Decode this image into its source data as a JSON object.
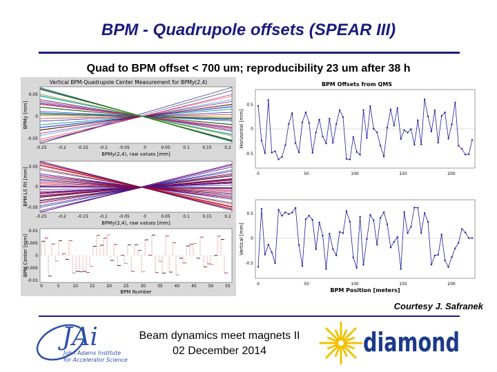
{
  "slide": {
    "title": "BPM - Quadrupole offsets (SPEAR III)",
    "subtitle": "Quad to BPM offset < 700 um; reproducibility 23 um after 38 h",
    "courtesy": "Courtesy J. Safranek",
    "footer_line1": "Beam dynamics meet magnets II",
    "footer_line2": "02 December 2014"
  },
  "logos": {
    "jai_letters": "JAi",
    "jai_line1": "John Adams Institute",
    "jai_line2": "for Accelerator Science",
    "diamond_text": "diamond"
  },
  "colors": {
    "title": "#1a1a80",
    "diamond_text": "#1c3a8a",
    "sun_yellow": "#f2c100",
    "panel_bg": "#d8d8d8",
    "plot_blue": "#1a1aa0"
  },
  "left_panels": [
    {
      "title": "Vertical BPM-Quadrupole Center Measurement for BPMy(2,4)",
      "ylabel": "BPMy [mm]",
      "yticks": [
        "0.05",
        "0",
        "-0.05"
      ],
      "xticks": [
        "-0.25",
        "-0.2",
        "-0.15",
        "-0.1",
        "-0.05",
        "0",
        "0.05",
        "0.1",
        "0.15",
        "0.2"
      ],
      "xlabel": "BPMy(2,4), raw values [mm]"
    },
    {
      "ylabel": "BPM LS Fit [mm]",
      "yticks": [
        "0.05",
        "0",
        "-0.05"
      ],
      "xticks": [
        "-0.25",
        "-0.2",
        "-0.15",
        "-0.1",
        "-0.05",
        "0",
        "0.05",
        "0.1",
        "0.15",
        "0.2"
      ],
      "xlabel": "BPMy(2,4), raw values [mm]"
    },
    {
      "ylabel": "BPM Center [mm]",
      "yticks": [
        "0.01",
        "0.005",
        "0",
        "-0.005",
        "-0.01"
      ],
      "xticks": [
        "0",
        "5",
        "10",
        "15",
        "20",
        "25",
        "30",
        "35",
        "40",
        "45",
        "50",
        "55"
      ],
      "xlabel": "BPM Number"
    }
  ],
  "right_panels": {
    "title": "BPM Offsets from QMS",
    "top": {
      "ylabel": "Horizontal [mm]",
      "yticks": [
        "0.5",
        "0",
        "-0.5"
      ]
    },
    "bottom": {
      "ylabel": "Vertical [mm]",
      "yticks": [
        "0.5",
        "0",
        "-0.5"
      ]
    },
    "xticks": [
      "0",
      "50",
      "100",
      "150",
      "200"
    ],
    "xlabel": "BPM Position [meters]"
  }
}
